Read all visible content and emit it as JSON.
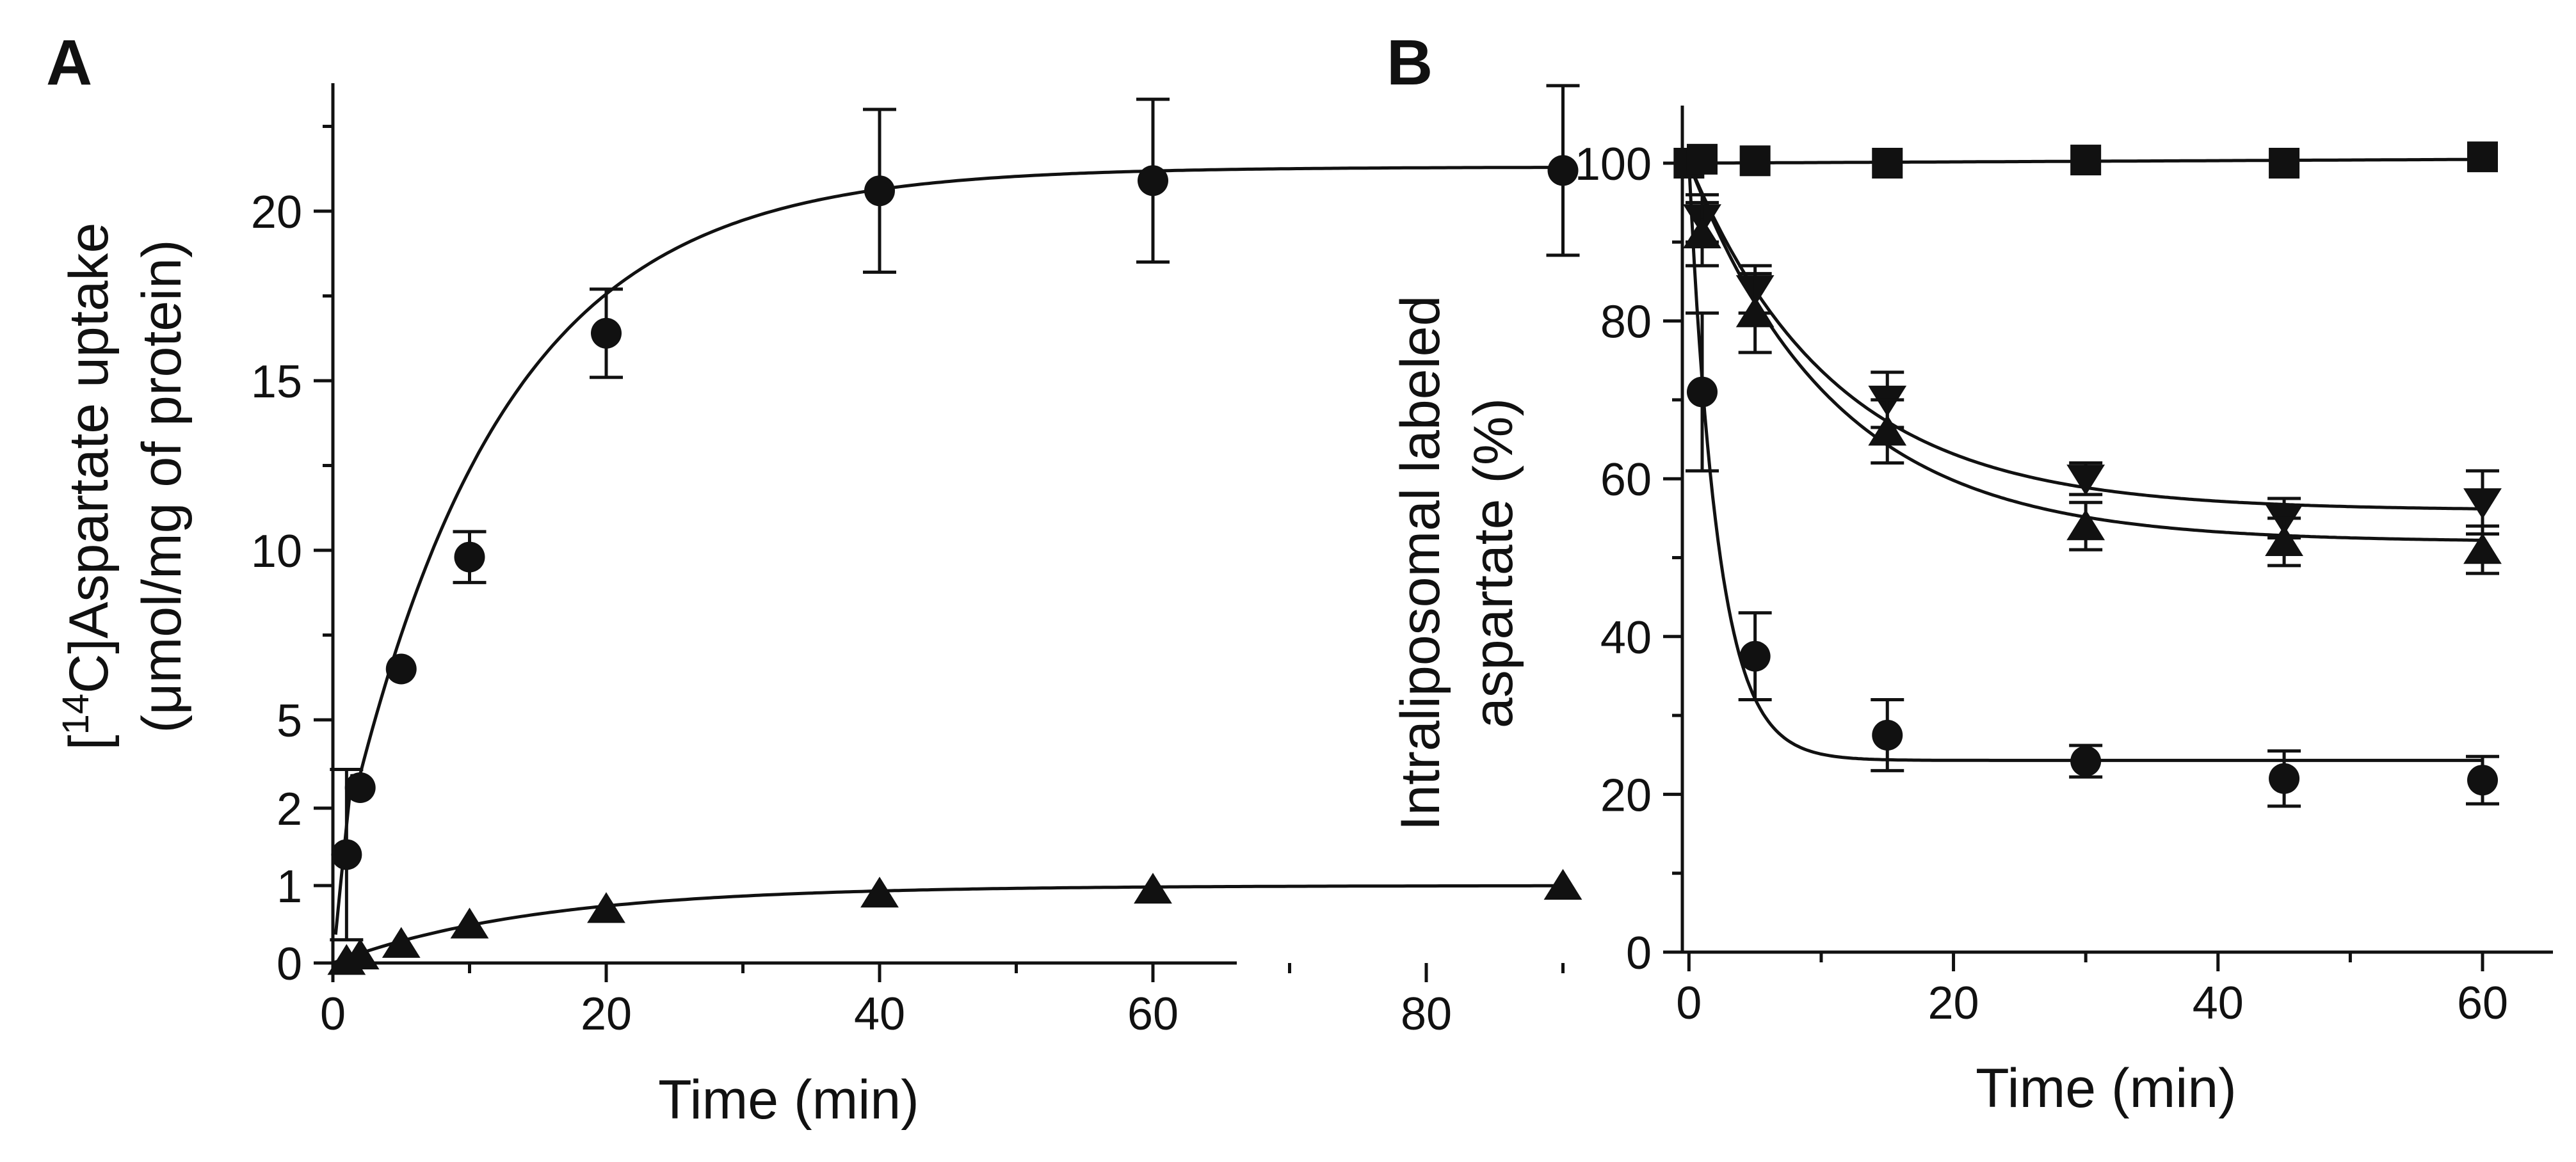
{
  "chart_data": [
    {
      "panel": "A",
      "type": "scatter",
      "xlabel": "Time (min)",
      "ylabel_line1": "[14C]Aspartate uptake",
      "ylabel_line1_parts": [
        "[",
        "14",
        "C]Aspartate uptake"
      ],
      "ylabel_line2": "(μmol/mg of protein)",
      "xlim": [
        0,
        92
      ],
      "x_ticks": [
        0,
        20,
        40,
        60,
        80
      ],
      "y_break": {
        "lower_range": [
          0,
          2.5
        ],
        "upper_range": [
          2.5,
          23.5
        ]
      },
      "y_ticks": [
        0,
        1,
        2,
        5,
        10,
        15,
        20
      ],
      "series": [
        {
          "name": "circle",
          "marker": "circle",
          "x": [
            1,
            2,
            5,
            10,
            20,
            40,
            60,
            90
          ],
          "y": [
            1.4,
            3.0,
            6.5,
            9.8,
            16.4,
            20.6,
            20.9,
            21.2
          ],
          "err": [
            1.1,
            0.0,
            0.0,
            0.75,
            1.3,
            2.4,
            2.4,
            2.5
          ]
        },
        {
          "name": "triangle",
          "marker": "triangle-up",
          "x": [
            1,
            2,
            5,
            10,
            20,
            40,
            60,
            90
          ],
          "y": [
            0.03,
            0.1,
            0.25,
            0.5,
            0.7,
            0.9,
            0.95,
            1.0
          ],
          "err": [
            0,
            0,
            0,
            0,
            0,
            0,
            0,
            0
          ]
        }
      ]
    },
    {
      "panel": "B",
      "type": "scatter",
      "xlabel": "Time (min)",
      "ylabel_line1": "Intraliposomal labeled",
      "ylabel_line2": "aspartate (%)",
      "xlim": [
        -0.5,
        64
      ],
      "ylim": [
        0,
        110
      ],
      "x_ticks": [
        0,
        20,
        40,
        60
      ],
      "y_ticks": [
        0,
        20,
        40,
        60,
        80,
        100
      ],
      "series": [
        {
          "name": "square",
          "marker": "square",
          "x": [
            0,
            1,
            5,
            15,
            30,
            45,
            60
          ],
          "y": [
            100,
            100.5,
            100.3,
            100,
            100.4,
            100,
            100.8
          ],
          "err": [
            0,
            0,
            0,
            0,
            0,
            0,
            0
          ]
        },
        {
          "name": "triangle-down",
          "marker": "triangle-down",
          "x": [
            1,
            5,
            15,
            30,
            45,
            60
          ],
          "y": [
            93,
            84,
            70,
            60,
            55,
            57
          ],
          "err": [
            3,
            3,
            3.5,
            2,
            2.5,
            4
          ]
        },
        {
          "name": "triangle-up",
          "marker": "triangle-up",
          "x": [
            1,
            5,
            15,
            30,
            45,
            60
          ],
          "y": [
            91,
            81,
            66,
            54,
            52,
            51
          ],
          "err": [
            4,
            5,
            4,
            3,
            3,
            3
          ]
        },
        {
          "name": "circle",
          "marker": "circle",
          "x": [
            1,
            5,
            15,
            30,
            45,
            60
          ],
          "y": [
            71,
            37.5,
            27.5,
            24.2,
            22,
            21.8
          ],
          "err": [
            10,
            5.5,
            4.5,
            2,
            3.5,
            3
          ]
        }
      ]
    }
  ],
  "panels": {
    "A": "A",
    "B": "B"
  }
}
